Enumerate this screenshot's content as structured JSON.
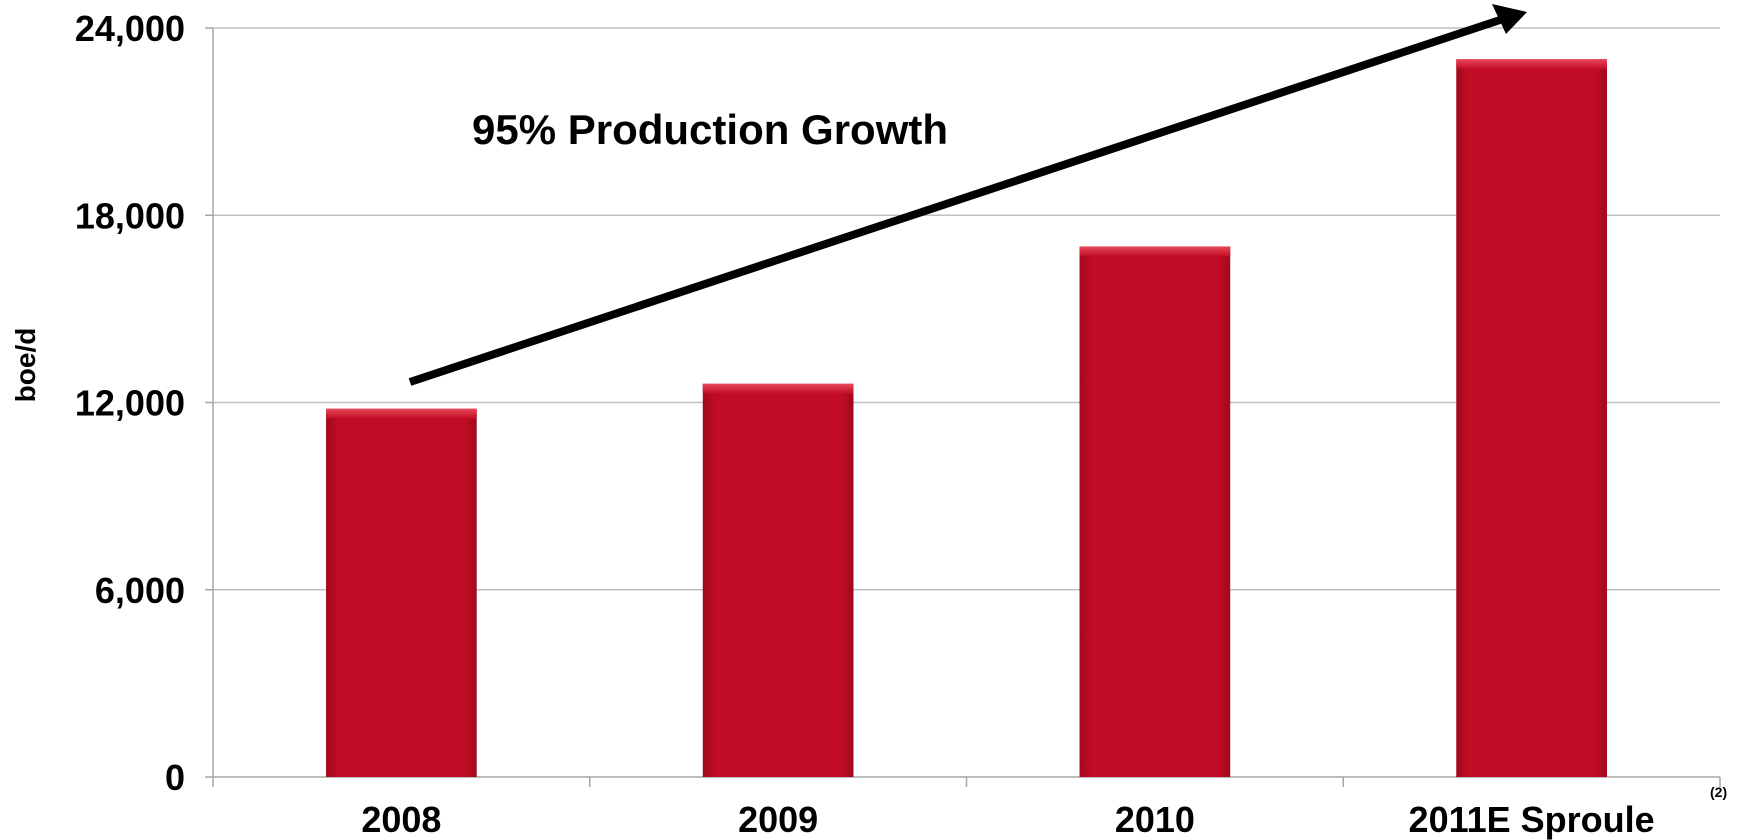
{
  "chart_data": {
    "type": "bar",
    "categories": [
      "2008",
      "2009",
      "2010",
      "2011E Sproule"
    ],
    "values": [
      11800,
      12600,
      17000,
      23000
    ],
    "title": "",
    "xlabel": "",
    "ylabel": "boe/d",
    "ylim": [
      0,
      24000
    ],
    "yticks": [
      0,
      6000,
      12000,
      18000,
      24000
    ],
    "ytick_labels": [
      "0",
      "6,000",
      "12,000",
      "18,000",
      "24,000"
    ],
    "grid": true,
    "bar_color": "#c00c24",
    "annotation": "95% Production Growth",
    "footnote": "(2)"
  }
}
